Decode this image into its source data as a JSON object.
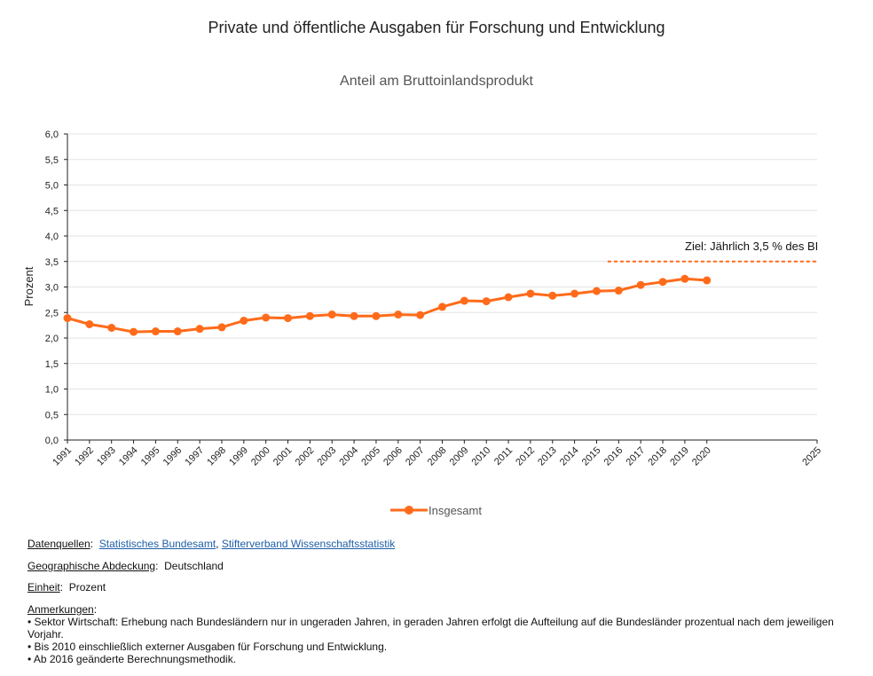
{
  "chart_data": {
    "type": "line",
    "title": "Private und öffentliche Ausgaben für Forschung und Entwicklung",
    "subtitle": "Anteil am Bruttoinlandsprodukt",
    "ylabel": "Prozent",
    "xlabel": "",
    "ylim": [
      0,
      6
    ],
    "y_ticks": [
      "0,0",
      "0,5",
      "1,0",
      "1,5",
      "2,0",
      "2,5",
      "3,0",
      "3,5",
      "4,0",
      "4,5",
      "5,0",
      "5,5",
      "6,0"
    ],
    "x_range": [
      1991,
      2025
    ],
    "x_ticks": [
      "1991",
      "1992",
      "1993",
      "1994",
      "1995",
      "1996",
      "1997",
      "1998",
      "1999",
      "2000",
      "2001",
      "2002",
      "2003",
      "2004",
      "2005",
      "2006",
      "2007",
      "2008",
      "2009",
      "2010",
      "2011",
      "2012",
      "2013",
      "2014",
      "2015",
      "2016",
      "2017",
      "2018",
      "2019",
      "2020",
      "2025"
    ],
    "grid": true,
    "legend_position": "bottom-center",
    "series": [
      {
        "name": "Insgesamt",
        "color": "#ff6b1a",
        "x": [
          1991,
          1992,
          1993,
          1994,
          1995,
          1996,
          1997,
          1998,
          1999,
          2000,
          2001,
          2002,
          2003,
          2004,
          2005,
          2006,
          2007,
          2008,
          2009,
          2010,
          2011,
          2012,
          2013,
          2014,
          2015,
          2016,
          2017,
          2018,
          2019,
          2020
        ],
        "y": [
          2.39,
          2.27,
          2.2,
          2.12,
          2.13,
          2.13,
          2.18,
          2.21,
          2.34,
          2.4,
          2.39,
          2.43,
          2.46,
          2.43,
          2.43,
          2.46,
          2.45,
          2.61,
          2.73,
          2.72,
          2.8,
          2.87,
          2.83,
          2.87,
          2.92,
          2.93,
          3.04,
          3.1,
          3.16,
          3.13
        ]
      }
    ],
    "target": {
      "label": "Ziel: Jährlich 3,5 % des BI",
      "value": 3.5,
      "x_start": 2015.5,
      "x_end": 2025,
      "color": "#ff6b1a"
    }
  },
  "footer": {
    "sources_label": "Datenquellen",
    "sources": [
      "Statistisches Bundesamt",
      "Stifterverband Wissenschaftsstatistik"
    ],
    "coverage_label": "Geographische Abdeckung",
    "coverage_value": "Deutschland",
    "unit_label": "Einheit",
    "unit_value": "Prozent",
    "notes_label": "Anmerkungen",
    "notes": [
      "• Sektor Wirtschaft: Erhebung nach Bundesländern nur in ungeraden Jahren, in geraden Jahren erfolgt die Aufteilung auf die Bundesländer prozentual nach dem jeweiligen Vorjahr.",
      "• Bis 2010 einschließlich externer Ausgaben für Forschung und Entwicklung.",
      "• Ab 2016 geänderte Berechnungsmethodik."
    ]
  }
}
